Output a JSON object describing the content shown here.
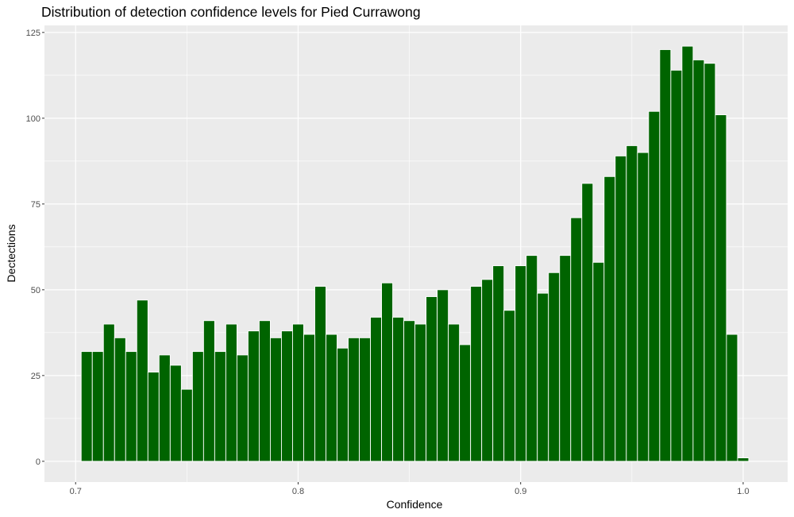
{
  "chart_data": {
    "type": "bar",
    "title": "Distribution of detection confidence levels for Pied Currawong",
    "xlabel": "Confidence",
    "ylabel": "Dectections",
    "xlim": [
      0.686,
      1.02
    ],
    "ylim": [
      -6.05,
      127.05
    ],
    "x_ticks": [
      0.7,
      0.8,
      0.9,
      1.0
    ],
    "x_tick_labels": [
      "0.7",
      "0.8",
      "0.9",
      "1.0"
    ],
    "y_ticks": [
      0,
      25,
      50,
      75,
      100,
      125
    ],
    "y_tick_labels": [
      "0",
      "25",
      "50",
      "75",
      "100",
      "125"
    ],
    "grid": true,
    "bin_width": 0.005,
    "x": [
      0.705,
      0.71,
      0.715,
      0.72,
      0.725,
      0.73,
      0.735,
      0.74,
      0.745,
      0.75,
      0.755,
      0.76,
      0.765,
      0.77,
      0.775,
      0.78,
      0.785,
      0.79,
      0.795,
      0.8,
      0.805,
      0.81,
      0.815,
      0.82,
      0.825,
      0.83,
      0.835,
      0.84,
      0.845,
      0.85,
      0.855,
      0.86,
      0.865,
      0.87,
      0.875,
      0.88,
      0.885,
      0.89,
      0.895,
      0.9,
      0.905,
      0.91,
      0.915,
      0.92,
      0.925,
      0.93,
      0.935,
      0.94,
      0.945,
      0.95,
      0.955,
      0.96,
      0.965,
      0.97,
      0.975,
      0.98,
      0.985,
      0.99,
      0.995,
      1.0
    ],
    "values": [
      32,
      32,
      40,
      36,
      32,
      47,
      26,
      31,
      28,
      21,
      32,
      41,
      32,
      40,
      31,
      38,
      41,
      36,
      38,
      40,
      37,
      51,
      37,
      33,
      36,
      36,
      42,
      52,
      42,
      41,
      40,
      48,
      50,
      40,
      34,
      51,
      53,
      57,
      44,
      57,
      60,
      49,
      55,
      60,
      71,
      81,
      58,
      83,
      89,
      92,
      90,
      102,
      120,
      114,
      121,
      117,
      116,
      101,
      37,
      1
    ],
    "colors": {
      "bar_fill": "#006400",
      "bar_outline": "#ffffff",
      "panel": "#ebebeb",
      "grid": "#ffffff"
    }
  }
}
